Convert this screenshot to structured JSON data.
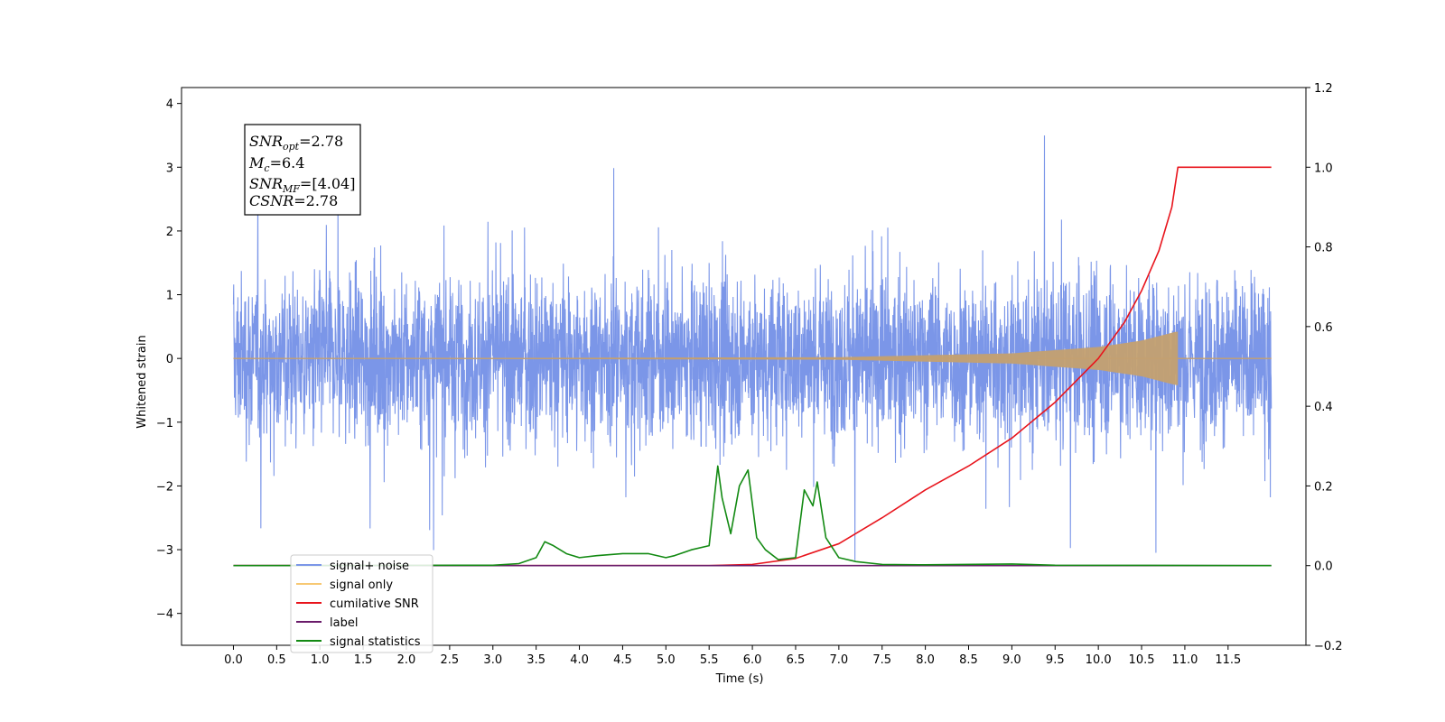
{
  "chart_data": {
    "type": "line",
    "title": "",
    "xlabel": "Time (s)",
    "ylabel": "Whitened strain",
    "xlim": [
      -0.6,
      12.4
    ],
    "ylim": [
      -4.5,
      4.25
    ],
    "y2lim": [
      -0.2,
      1.2
    ],
    "x_ticks": [
      "0.0",
      "0.5",
      "1.0",
      "1.5",
      "2.0",
      "2.5",
      "3.0",
      "3.5",
      "4.0",
      "4.5",
      "5.0",
      "5.5",
      "6.0",
      "6.5",
      "7.0",
      "7.5",
      "8.0",
      "8.5",
      "9.0",
      "9.5",
      "10.0",
      "10.5",
      "11.0",
      "11.5"
    ],
    "y_ticks": [
      "4",
      "3",
      "2",
      "1",
      "0",
      "−1",
      "−2",
      "−3",
      "−4"
    ],
    "y2_ticks": [
      "1.2",
      "1.0",
      "0.8",
      "0.6",
      "0.4",
      "0.2",
      "0.0",
      "−0.2"
    ],
    "legend_position": "lower-left",
    "annotation": {
      "lines": [
        {
          "base": "SNR",
          "sub": "opt",
          "rest": "=2.78"
        },
        {
          "base": "M",
          "sub": "c",
          "rest": "=6.4"
        },
        {
          "base": "SNR",
          "sub": "MF",
          "rest": "=[4.04]"
        },
        {
          "base": "CSNR",
          "sub": "",
          "rest": "=2.78"
        }
      ]
    },
    "series": [
      {
        "name": "signal+ noise",
        "color": "#7b96e8",
        "axis": "left",
        "kind": "noise",
        "x_range": [
          0.0,
          12.0
        ],
        "amplitude_typical": 1.5,
        "amplitude_peak": 3.85
      },
      {
        "name": "signal only",
        "color": "#f7c873",
        "axis": "left",
        "kind": "chirp",
        "x_range": [
          0.0,
          10.92
        ],
        "envelope": [
          [
            0,
            0.0
          ],
          [
            7.0,
            0.02
          ],
          [
            9.0,
            0.08
          ],
          [
            10.0,
            0.18
          ],
          [
            10.5,
            0.28
          ],
          [
            10.9,
            0.42
          ]
        ]
      },
      {
        "name": "cumilative SNR",
        "color": "#e8141c",
        "axis": "right",
        "x": [
          0.0,
          5.5,
          6.0,
          6.5,
          7.0,
          7.5,
          8.0,
          8.5,
          9.0,
          9.5,
          10.0,
          10.3,
          10.5,
          10.7,
          10.85,
          10.92,
          11.0,
          12.0
        ],
        "values": [
          0.0,
          0.0,
          0.003,
          0.018,
          0.055,
          0.12,
          0.19,
          0.25,
          0.32,
          0.41,
          0.52,
          0.61,
          0.69,
          0.79,
          0.9,
          1.0,
          1.0,
          1.0
        ]
      },
      {
        "name": "label",
        "color": "#6a1b6a",
        "axis": "right",
        "x": [
          0.0,
          12.0
        ],
        "values": [
          0.0,
          0.0
        ]
      },
      {
        "name": "signal statistics",
        "color": "#138a13",
        "axis": "right",
        "x": [
          0.0,
          3.0,
          3.3,
          3.5,
          3.6,
          3.7,
          3.85,
          4.0,
          4.2,
          4.5,
          4.8,
          5.0,
          5.1,
          5.3,
          5.5,
          5.6,
          5.65,
          5.75,
          5.85,
          5.95,
          6.05,
          6.15,
          6.3,
          6.5,
          6.6,
          6.7,
          6.75,
          6.85,
          7.0,
          7.2,
          7.5,
          8.0,
          9.0,
          9.5,
          12.0
        ],
        "values": [
          0.0,
          0.001,
          0.005,
          0.02,
          0.06,
          0.05,
          0.03,
          0.02,
          0.025,
          0.03,
          0.03,
          0.02,
          0.025,
          0.04,
          0.05,
          0.25,
          0.17,
          0.08,
          0.2,
          0.24,
          0.07,
          0.04,
          0.015,
          0.02,
          0.19,
          0.15,
          0.21,
          0.07,
          0.02,
          0.01,
          0.003,
          0.002,
          0.004,
          0.001,
          0.0
        ]
      }
    ]
  }
}
